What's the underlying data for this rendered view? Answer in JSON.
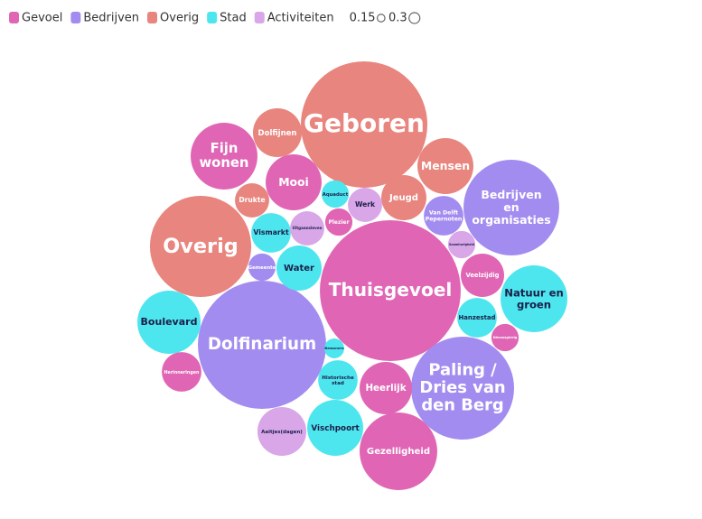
{
  "chart_data": {
    "type": "bubble",
    "groups": [
      {
        "name": "Gevoel",
        "color": "#e066b5"
      },
      {
        "name": "Bedrijven",
        "color": "#a38cf0"
      },
      {
        "name": "Overig",
        "color": "#e8857e"
      },
      {
        "name": "Stad",
        "color": "#4de6ee"
      },
      {
        "name": "Activiteiten",
        "color": "#d9a6e8"
      }
    ],
    "size_legend": [
      0.15,
      0.3
    ],
    "bubbles": [
      {
        "label": "Geboren",
        "group": "Overig",
        "value": 40.9
      },
      {
        "label": "Thuisgevoel",
        "group": "Gevoel",
        "value": 50.7
      },
      {
        "label": "Dolfinarium",
        "group": "Bedrijven",
        "value": 42.0
      },
      {
        "label": "Overig",
        "group": "Overig",
        "value": 26.2
      },
      {
        "label": "Paling / Dries van den Berg",
        "group": "Bedrijven",
        "value": 27.1
      },
      {
        "label": "Bedrijven en organisaties",
        "group": "Bedrijven",
        "value": 23.4
      },
      {
        "label": "Gezelligheid",
        "group": "Gevoel",
        "value": 15.4
      },
      {
        "label": "Fijn wonen",
        "group": "Gevoel",
        "value": 11.4
      },
      {
        "label": "Natuur en groen",
        "group": "Stad",
        "value": 11.4
      },
      {
        "label": "Boulevard",
        "group": "Stad",
        "value": 10.2
      },
      {
        "label": "Mensen",
        "group": "Overig",
        "value": 8.0
      },
      {
        "label": "Mooi",
        "group": "Gevoel",
        "value": 8.0
      },
      {
        "label": "Vischpoort",
        "group": "Stad",
        "value": 8.0
      },
      {
        "label": "Heerlijk",
        "group": "Gevoel",
        "value": 7.0
      },
      {
        "label": "Aaitjes(dagen)",
        "group": "Activiteiten",
        "value": 6.1
      },
      {
        "label": "Dolfijnen",
        "group": "Overig",
        "value": 6.1
      },
      {
        "label": "Jeugd",
        "group": "Overig",
        "value": 5.2
      },
      {
        "label": "Water",
        "group": "Stad",
        "value": 5.2
      },
      {
        "label": "Veelzijdig",
        "group": "Gevoel",
        "value": 4.8
      },
      {
        "label": "Vismarkt",
        "group": "Stad",
        "value": 4.0
      },
      {
        "label": "Hanzestad",
        "group": "Stad",
        "value": 4.0
      },
      {
        "label": "Historische stad",
        "group": "Stad",
        "value": 4.0
      },
      {
        "label": "Herinneringen",
        "group": "Gevoel",
        "value": 4.0
      },
      {
        "label": "Van Delft Pepernoten",
        "group": "Bedrijven",
        "value": 4.0
      },
      {
        "label": "Werk",
        "group": "Activiteiten",
        "value": 3.0
      },
      {
        "label": "Drukte",
        "group": "Overig",
        "value": 3.0
      },
      {
        "label": "Uitgaansleven",
        "group": "Activiteiten",
        "value": 3.0
      },
      {
        "label": "Aquaduct",
        "group": "Stad",
        "value": 1.9
      },
      {
        "label": "Plezier",
        "group": "Gevoel",
        "value": 1.9
      },
      {
        "label": "Gemeente",
        "group": "Bedrijven",
        "value": 1.9
      },
      {
        "label": "Saamhorigheid",
        "group": "Activiteiten",
        "value": 1.9
      },
      {
        "label": "Nieuwsgierig",
        "group": "Gevoel",
        "value": 1.9
      },
      {
        "label": "Bewoners",
        "group": "Stad",
        "value": 1.0
      }
    ]
  }
}
